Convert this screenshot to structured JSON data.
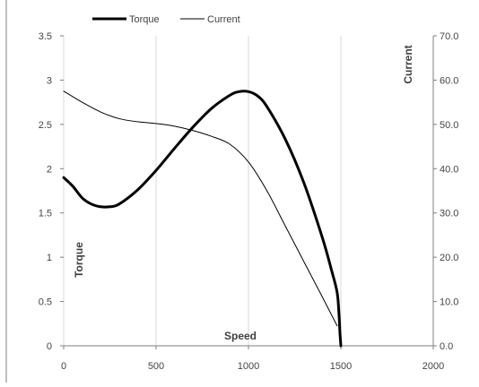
{
  "chart_data": {
    "type": "line",
    "title": "",
    "xlabel": "Speed",
    "ylabel": "Torque",
    "y2label": "Current",
    "xlim": [
      0,
      2000
    ],
    "ylim": [
      0,
      3.5
    ],
    "y2lim": [
      0,
      70
    ],
    "x_ticks": [
      0,
      500,
      1000,
      1500,
      2000
    ],
    "y_ticks": [
      0,
      0.5,
      1,
      1.5,
      2,
      2.5,
      3,
      3.5
    ],
    "y2_ticks": [
      0,
      10,
      20,
      30,
      40,
      50,
      60,
      70
    ],
    "x_tick_labels": [
      "0",
      "500",
      "1000",
      "1500",
      "2000"
    ],
    "y_tick_labels": [
      "0",
      "0.5",
      "1",
      "1.5",
      "2",
      "2.5",
      "3",
      "3.5"
    ],
    "y2_tick_labels": [
      "0.0",
      "10.0",
      "20.0",
      "30.0",
      "40.0",
      "50.0",
      "60.0",
      "70.0"
    ],
    "grid": "vertical",
    "legend": "top",
    "series": [
      {
        "name": "Torque",
        "axis": "left",
        "color": "#000000",
        "x": [
          0,
          50,
          100,
          150,
          200,
          250,
          300,
          400,
          500,
          600,
          700,
          800,
          900,
          950,
          1000,
          1050,
          1100,
          1200,
          1300,
          1400,
          1450,
          1480,
          1490,
          1495,
          1500
        ],
        "y": [
          1.9,
          1.8,
          1.67,
          1.6,
          1.57,
          1.57,
          1.6,
          1.76,
          1.98,
          2.23,
          2.47,
          2.68,
          2.83,
          2.87,
          2.87,
          2.82,
          2.7,
          2.33,
          1.84,
          1.22,
          0.85,
          0.6,
          0.35,
          0.15,
          0.0
        ]
      },
      {
        "name": "Current",
        "axis": "right",
        "color": "#000000",
        "x": [
          0,
          100,
          200,
          300,
          400,
          500,
          600,
          700,
          800,
          900,
          1000,
          1100,
          1200,
          1300,
          1400,
          1480
        ],
        "y": [
          57.5,
          55.0,
          52.8,
          51.3,
          50.6,
          50.2,
          49.6,
          48.6,
          47.3,
          45.5,
          41.5,
          35.0,
          27.0,
          19.0,
          11.0,
          4.5
        ]
      }
    ]
  }
}
